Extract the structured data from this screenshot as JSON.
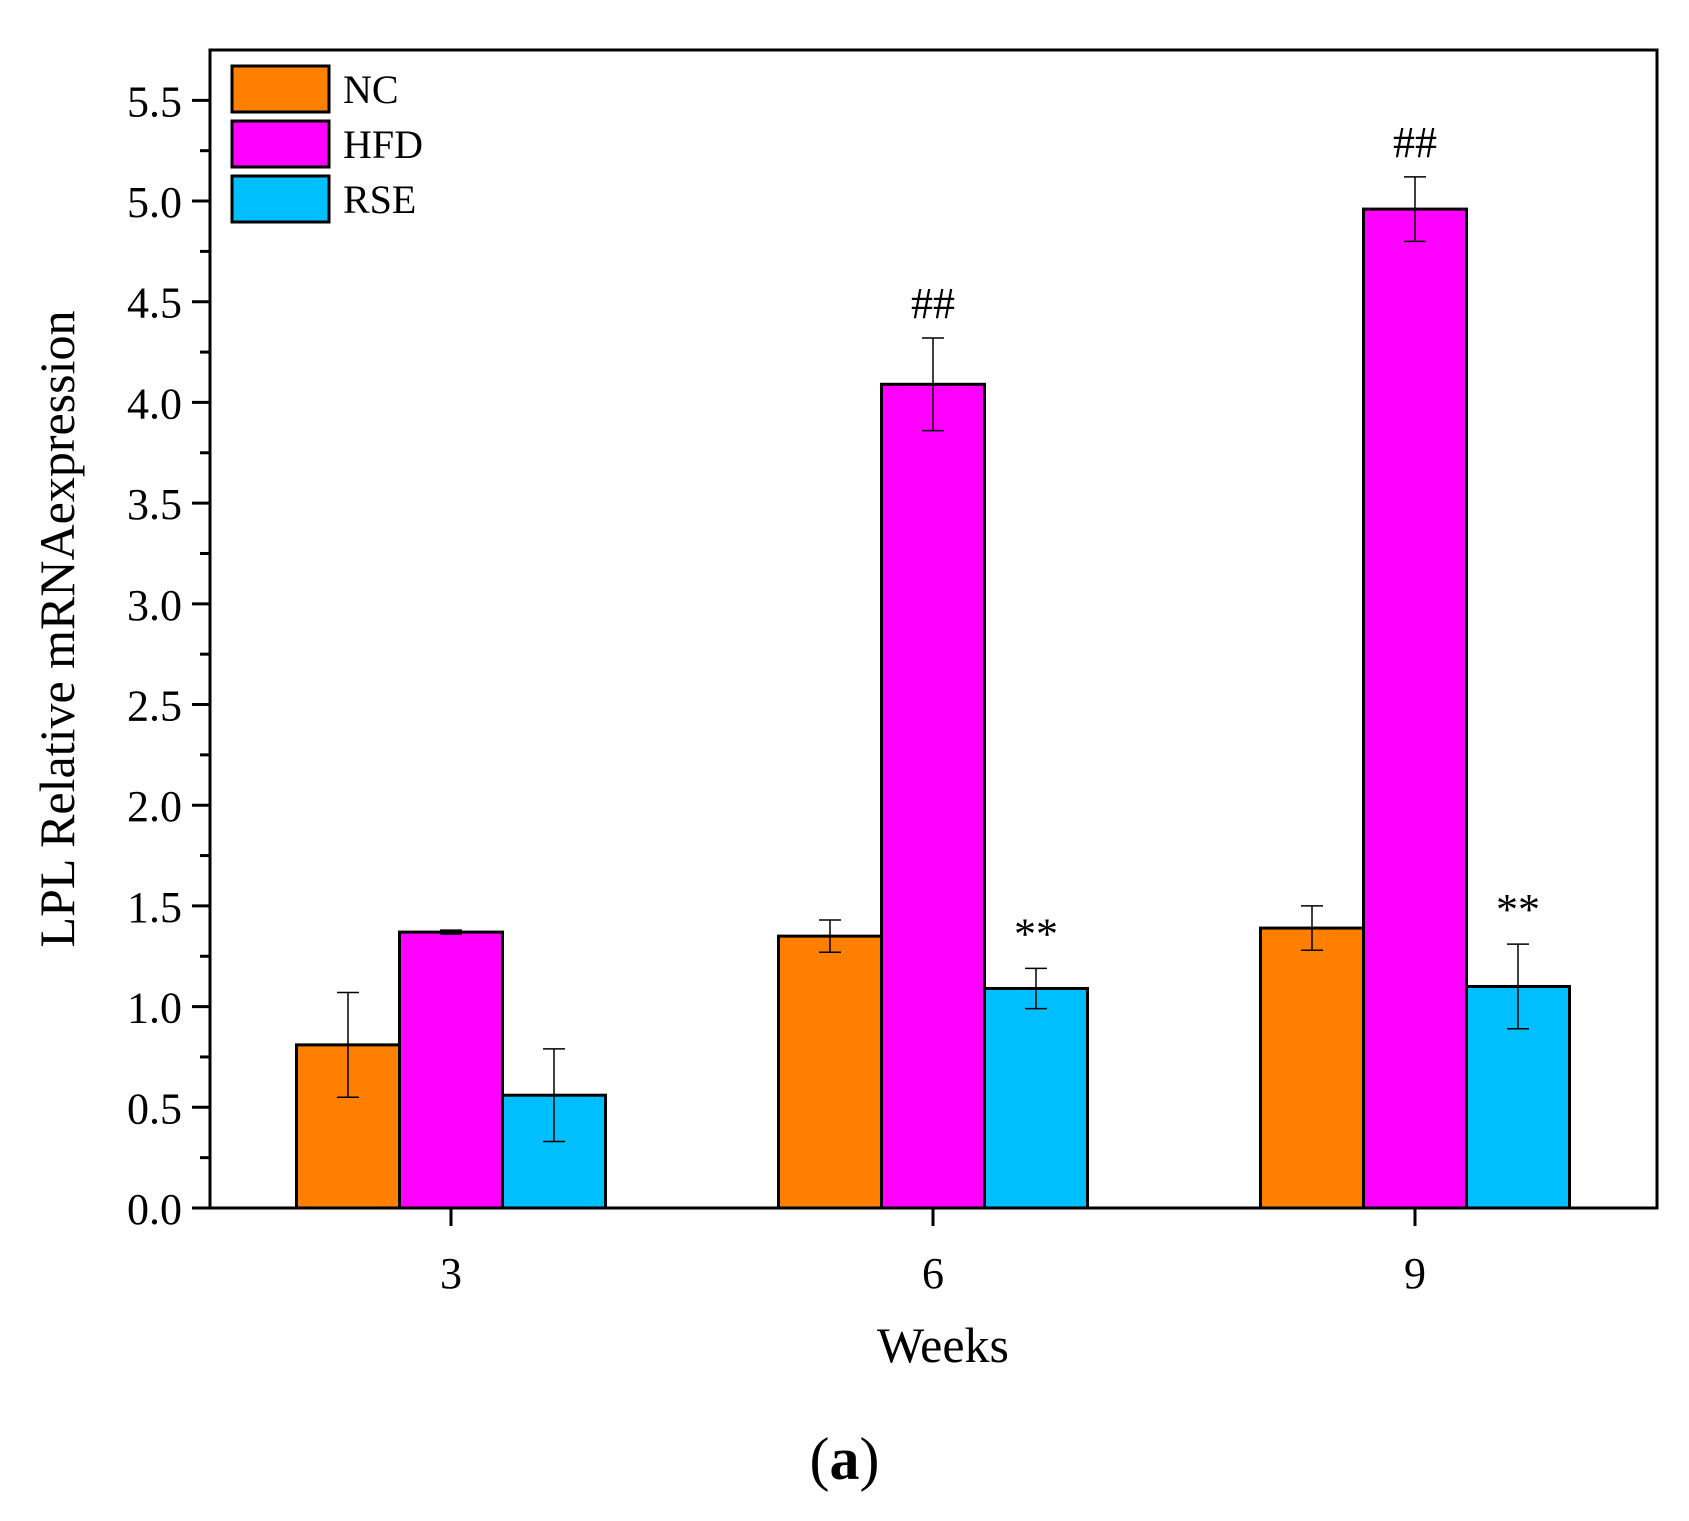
{
  "chart_data": {
    "type": "bar",
    "xlabel": "Weeks",
    "ylabel": "LPL Relative mRNAexpression",
    "categories": [
      "3",
      "6",
      "9"
    ],
    "ylim": [
      0,
      5.75
    ],
    "yticks": [
      "0.0",
      "0.5",
      "1.0",
      "1.5",
      "2.0",
      "2.5",
      "3.0",
      "3.5",
      "4.0",
      "4.5",
      "5.0",
      "5.5"
    ],
    "legend_position": "top-left",
    "series": [
      {
        "name": "NC",
        "color": "#FF8000",
        "values": [
          0.81,
          1.35,
          1.39
        ],
        "errors": [
          0.26,
          0.08,
          0.11
        ],
        "annotations": [
          "",
          "",
          ""
        ]
      },
      {
        "name": "HFD",
        "color": "#FF00FF",
        "values": [
          1.37,
          4.09,
          4.96
        ],
        "errors": [
          0.01,
          0.23,
          0.16
        ],
        "annotations": [
          "",
          "##",
          "##"
        ]
      },
      {
        "name": "RSE",
        "color": "#00BFFF",
        "values": [
          0.56,
          1.09,
          1.1
        ],
        "errors": [
          0.23,
          0.1,
          0.21
        ],
        "annotations": [
          "",
          "**",
          "**"
        ]
      }
    ]
  },
  "caption": {
    "open": "(",
    "letter": "a",
    "close": ")"
  }
}
